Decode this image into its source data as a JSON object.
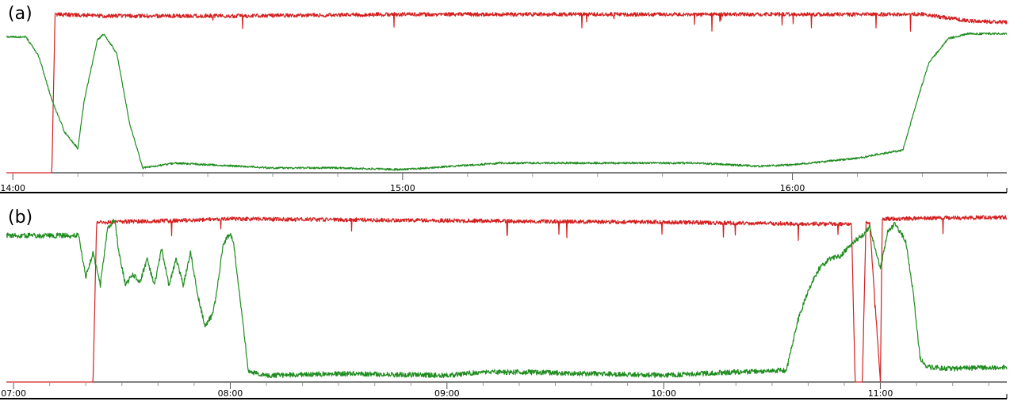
{
  "colors": {
    "red_series": "#d42020",
    "green_series": "#1e8c1e",
    "axis": "#000000",
    "tick": "#9a9a9a"
  },
  "chart_data": [
    {
      "type": "line",
      "panel_label": "(a)",
      "xlim": [
        "13:59",
        "16:33"
      ],
      "ylim": [
        0,
        1
      ],
      "grid": false,
      "x_ticks": [
        "14:00",
        "15:00",
        "16:00"
      ],
      "series": [
        {
          "color": "red_series",
          "noise": 0.012,
          "x": [
            "13:59",
            "14:06",
            "14:06.5",
            "14:15",
            "14:35",
            "15:00",
            "15:30",
            "16:00",
            "16:20",
            "16:27",
            "16:33"
          ],
          "values": [
            0.0,
            0.0,
            0.98,
            0.97,
            0.97,
            0.98,
            0.98,
            0.98,
            0.98,
            0.94,
            0.93
          ]
        },
        {
          "color": "green_series",
          "noise": 0.006,
          "x": [
            "13:59",
            "14:02",
            "14:04",
            "14:06",
            "14:08",
            "14:10",
            "14:11",
            "14:13",
            "14:14",
            "14:16",
            "14:18",
            "14:20",
            "14:25",
            "14:40",
            "14:50",
            "15:00",
            "15:15",
            "15:30",
            "15:45",
            "15:55",
            "16:00",
            "16:05",
            "16:10",
            "16:14",
            "16:17",
            "16:19",
            "16:21",
            "16:24",
            "16:27",
            "16:33"
          ],
          "values": [
            0.84,
            0.84,
            0.72,
            0.45,
            0.25,
            0.15,
            0.45,
            0.82,
            0.86,
            0.74,
            0.3,
            0.03,
            0.06,
            0.03,
            0.03,
            0.02,
            0.06,
            0.06,
            0.06,
            0.04,
            0.05,
            0.07,
            0.09,
            0.12,
            0.14,
            0.42,
            0.68,
            0.83,
            0.86,
            0.86
          ]
        }
      ]
    },
    {
      "type": "line",
      "panel_label": "(b)",
      "xlim": [
        "06:58",
        "11:35"
      ],
      "ylim": [
        0,
        1
      ],
      "grid": false,
      "x_ticks": [
        "07:00",
        "08:00",
        "09:00",
        "10:00",
        "11:00"
      ],
      "series": [
        {
          "color": "red_series",
          "noise": 0.012,
          "x": [
            "06:58",
            "07:22",
            "07:23",
            "07:45",
            "08:00",
            "09:00",
            "10:00",
            "10:40",
            "10:52",
            "10:53",
            "10:55",
            "10:56",
            "10:57",
            "11:00",
            "11:00.5",
            "11:35"
          ],
          "values": [
            0.0,
            0.0,
            0.96,
            0.97,
            0.98,
            0.97,
            0.96,
            0.95,
            0.95,
            0.0,
            0.0,
            0.96,
            0.96,
            0.0,
            0.98,
            0.99
          ]
        },
        {
          "color": "green_series",
          "noise": 0.015,
          "x": [
            "06:58",
            "07:18",
            "07:20",
            "07:22",
            "07:24",
            "07:26",
            "07:28",
            "07:29",
            "07:31",
            "07:33",
            "07:35",
            "07:37",
            "07:39",
            "07:41",
            "07:43",
            "07:45",
            "07:47",
            "07:49",
            "07:51",
            "07:53",
            "07:55",
            "07:56",
            "07:58",
            "08:00",
            "08:01",
            "08:03",
            "08:05",
            "08:10",
            "08:30",
            "09:00",
            "09:10",
            "09:20",
            "09:40",
            "10:00",
            "10:20",
            "10:34",
            "10:37",
            "10:40",
            "10:43",
            "10:46",
            "10:49",
            "10:53",
            "10:55",
            "10:57",
            "11:00",
            "11:02",
            "11:04",
            "11:07",
            "11:09",
            "11:11",
            "11:13",
            "11:20",
            "11:35"
          ],
          "values": [
            0.88,
            0.88,
            0.63,
            0.78,
            0.58,
            0.92,
            0.98,
            0.8,
            0.58,
            0.65,
            0.6,
            0.74,
            0.58,
            0.8,
            0.58,
            0.74,
            0.58,
            0.78,
            0.52,
            0.34,
            0.4,
            0.5,
            0.82,
            0.9,
            0.82,
            0.45,
            0.06,
            0.04,
            0.05,
            0.04,
            0.06,
            0.06,
            0.05,
            0.04,
            0.06,
            0.07,
            0.36,
            0.55,
            0.68,
            0.74,
            0.76,
            0.85,
            0.88,
            0.93,
            0.68,
            0.9,
            0.95,
            0.85,
            0.55,
            0.14,
            0.09,
            0.08,
            0.09
          ]
        }
      ]
    }
  ]
}
